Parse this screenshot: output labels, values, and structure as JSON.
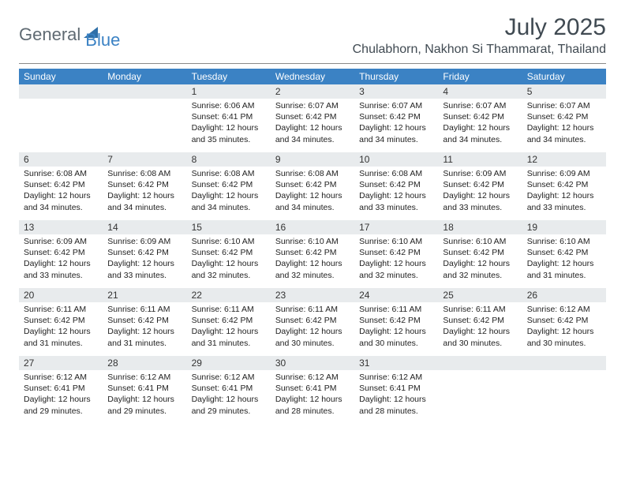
{
  "logo": {
    "text1": "General",
    "text2": "Blue"
  },
  "title": "July 2025",
  "location": "Chulabhorn, Nakhon Si Thammarat, Thailand",
  "colors": {
    "header_bg": "#3b82c4",
    "header_text": "#ffffff",
    "daynum_bg": "#e8ebed",
    "body_text": "#222222",
    "title_text": "#404a52",
    "logo_gray": "#5f6a72",
    "logo_blue": "#3b82c4",
    "triangle": "#2f6fa8"
  },
  "typography": {
    "title_fontsize": 30,
    "location_fontsize": 16,
    "header_fontsize": 12,
    "daynum_fontsize": 12,
    "body_fontsize": 10.5
  },
  "weekdays": [
    "Sunday",
    "Monday",
    "Tuesday",
    "Wednesday",
    "Thursday",
    "Friday",
    "Saturday"
  ],
  "weeks": [
    [
      null,
      null,
      {
        "n": "1",
        "sr": "6:06 AM",
        "ss": "6:41 PM",
        "dl": "12 hours and 35 minutes."
      },
      {
        "n": "2",
        "sr": "6:07 AM",
        "ss": "6:42 PM",
        "dl": "12 hours and 34 minutes."
      },
      {
        "n": "3",
        "sr": "6:07 AM",
        "ss": "6:42 PM",
        "dl": "12 hours and 34 minutes."
      },
      {
        "n": "4",
        "sr": "6:07 AM",
        "ss": "6:42 PM",
        "dl": "12 hours and 34 minutes."
      },
      {
        "n": "5",
        "sr": "6:07 AM",
        "ss": "6:42 PM",
        "dl": "12 hours and 34 minutes."
      }
    ],
    [
      {
        "n": "6",
        "sr": "6:08 AM",
        "ss": "6:42 PM",
        "dl": "12 hours and 34 minutes."
      },
      {
        "n": "7",
        "sr": "6:08 AM",
        "ss": "6:42 PM",
        "dl": "12 hours and 34 minutes."
      },
      {
        "n": "8",
        "sr": "6:08 AM",
        "ss": "6:42 PM",
        "dl": "12 hours and 34 minutes."
      },
      {
        "n": "9",
        "sr": "6:08 AM",
        "ss": "6:42 PM",
        "dl": "12 hours and 34 minutes."
      },
      {
        "n": "10",
        "sr": "6:08 AM",
        "ss": "6:42 PM",
        "dl": "12 hours and 33 minutes."
      },
      {
        "n": "11",
        "sr": "6:09 AM",
        "ss": "6:42 PM",
        "dl": "12 hours and 33 minutes."
      },
      {
        "n": "12",
        "sr": "6:09 AM",
        "ss": "6:42 PM",
        "dl": "12 hours and 33 minutes."
      }
    ],
    [
      {
        "n": "13",
        "sr": "6:09 AM",
        "ss": "6:42 PM",
        "dl": "12 hours and 33 minutes."
      },
      {
        "n": "14",
        "sr": "6:09 AM",
        "ss": "6:42 PM",
        "dl": "12 hours and 33 minutes."
      },
      {
        "n": "15",
        "sr": "6:10 AM",
        "ss": "6:42 PM",
        "dl": "12 hours and 32 minutes."
      },
      {
        "n": "16",
        "sr": "6:10 AM",
        "ss": "6:42 PM",
        "dl": "12 hours and 32 minutes."
      },
      {
        "n": "17",
        "sr": "6:10 AM",
        "ss": "6:42 PM",
        "dl": "12 hours and 32 minutes."
      },
      {
        "n": "18",
        "sr": "6:10 AM",
        "ss": "6:42 PM",
        "dl": "12 hours and 32 minutes."
      },
      {
        "n": "19",
        "sr": "6:10 AM",
        "ss": "6:42 PM",
        "dl": "12 hours and 31 minutes."
      }
    ],
    [
      {
        "n": "20",
        "sr": "6:11 AM",
        "ss": "6:42 PM",
        "dl": "12 hours and 31 minutes."
      },
      {
        "n": "21",
        "sr": "6:11 AM",
        "ss": "6:42 PM",
        "dl": "12 hours and 31 minutes."
      },
      {
        "n": "22",
        "sr": "6:11 AM",
        "ss": "6:42 PM",
        "dl": "12 hours and 31 minutes."
      },
      {
        "n": "23",
        "sr": "6:11 AM",
        "ss": "6:42 PM",
        "dl": "12 hours and 30 minutes."
      },
      {
        "n": "24",
        "sr": "6:11 AM",
        "ss": "6:42 PM",
        "dl": "12 hours and 30 minutes."
      },
      {
        "n": "25",
        "sr": "6:11 AM",
        "ss": "6:42 PM",
        "dl": "12 hours and 30 minutes."
      },
      {
        "n": "26",
        "sr": "6:12 AM",
        "ss": "6:42 PM",
        "dl": "12 hours and 30 minutes."
      }
    ],
    [
      {
        "n": "27",
        "sr": "6:12 AM",
        "ss": "6:41 PM",
        "dl": "12 hours and 29 minutes."
      },
      {
        "n": "28",
        "sr": "6:12 AM",
        "ss": "6:41 PM",
        "dl": "12 hours and 29 minutes."
      },
      {
        "n": "29",
        "sr": "6:12 AM",
        "ss": "6:41 PM",
        "dl": "12 hours and 29 minutes."
      },
      {
        "n": "30",
        "sr": "6:12 AM",
        "ss": "6:41 PM",
        "dl": "12 hours and 28 minutes."
      },
      {
        "n": "31",
        "sr": "6:12 AM",
        "ss": "6:41 PM",
        "dl": "12 hours and 28 minutes."
      },
      null,
      null
    ]
  ],
  "labels": {
    "sunrise": "Sunrise: ",
    "sunset": "Sunset: ",
    "daylight": "Daylight: "
  }
}
